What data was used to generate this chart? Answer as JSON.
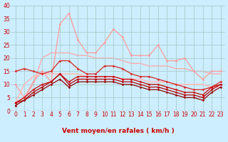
{
  "xlabel": "Vent moyen/en rafales ( km/h )",
  "background_color": "#cceeff",
  "grid_color": "#aacccc",
  "xlim": [
    -0.5,
    23.5
  ],
  "ylim": [
    0,
    40
  ],
  "x": [
    0,
    1,
    2,
    3,
    4,
    5,
    6,
    7,
    8,
    9,
    10,
    11,
    12,
    13,
    14,
    15,
    16,
    17,
    18,
    19,
    20,
    21,
    22,
    23
  ],
  "lines": [
    {
      "y": [
        10,
        5,
        11,
        15,
        11,
        33,
        37,
        27,
        22,
        22,
        26,
        31,
        28,
        21,
        21,
        21,
        25,
        19,
        19,
        20,
        15,
        12,
        15,
        15
      ],
      "color": "#ff9999",
      "lw": 0.9,
      "marker": "D",
      "ms": 1.8,
      "zorder": 2
    },
    {
      "y": [
        3,
        5,
        10,
        20,
        22,
        22,
        22,
        21,
        21,
        20,
        20,
        20,
        19,
        18,
        18,
        17,
        17,
        17,
        16,
        16,
        15,
        15,
        14,
        14
      ],
      "color": "#ffaaaa",
      "lw": 1.0,
      "marker": null,
      "ms": 0,
      "zorder": 1
    },
    {
      "y": [
        15,
        16,
        15,
        14,
        15,
        19,
        19,
        16,
        14,
        14,
        17,
        17,
        16,
        14,
        13,
        13,
        12,
        11,
        10,
        9,
        8,
        8,
        9,
        11
      ],
      "color": "#dd2222",
      "lw": 0.9,
      "marker": "D",
      "ms": 1.8,
      "zorder": 4
    },
    {
      "y": [
        3,
        5,
        8,
        10,
        11,
        14,
        11,
        13,
        13,
        13,
        13,
        13,
        12,
        12,
        11,
        10,
        10,
        9,
        8,
        7,
        7,
        6,
        9,
        10
      ],
      "color": "#cc0000",
      "lw": 0.9,
      "marker": "D",
      "ms": 1.8,
      "zorder": 5
    },
    {
      "y": [
        3,
        4,
        7,
        9,
        11,
        14,
        10,
        12,
        12,
        12,
        12,
        12,
        11,
        11,
        10,
        9,
        9,
        8,
        7,
        6,
        6,
        5,
        8,
        10
      ],
      "color": "#bb0000",
      "lw": 0.9,
      "marker": "D",
      "ms": 1.8,
      "zorder": 6
    },
    {
      "y": [
        2,
        4,
        6,
        8,
        10,
        12,
        9,
        11,
        11,
        11,
        11,
        11,
        10,
        10,
        9,
        8,
        8,
        7,
        6,
        5,
        5,
        4,
        7,
        9
      ],
      "color": "#990000",
      "lw": 0.9,
      "marker": "D",
      "ms": 1.8,
      "zorder": 7
    },
    {
      "y": [
        3,
        10,
        13,
        14,
        14,
        14,
        14,
        14,
        13,
        13,
        13,
        13,
        12,
        12,
        12,
        11,
        11,
        11,
        10,
        10,
        10,
        10,
        9,
        9
      ],
      "color": "#ffbbbb",
      "lw": 1.2,
      "marker": null,
      "ms": 0,
      "zorder": 3
    }
  ],
  "xtick_labels": [
    "0",
    "1",
    "2",
    "3",
    "4",
    "5",
    "6",
    "7",
    "8",
    "9",
    "10",
    "11",
    "12",
    "13",
    "14",
    "15",
    "16",
    "17",
    "18",
    "19",
    "20",
    "21",
    "22",
    "23"
  ],
  "ytick_values": [
    0,
    5,
    10,
    15,
    20,
    25,
    30,
    35,
    40
  ],
  "arrow_color": "#cc0000",
  "tick_fontsize": 5.5,
  "label_fontsize": 6.5,
  "label_color": "#cc0000"
}
